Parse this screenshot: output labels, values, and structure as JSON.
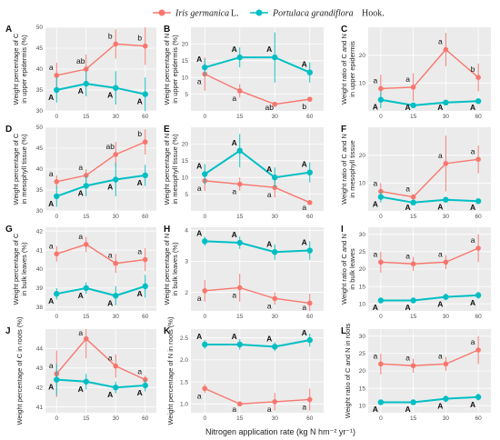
{
  "legend": {
    "series": [
      {
        "name": "Iris germanica",
        "suffix": "L.",
        "color": "#f8766d"
      },
      {
        "name": "Portulaca grandiflora",
        "suffix": "Hook.",
        "color": "#00bfc4"
      }
    ]
  },
  "xlabel": "Nitrogen application rate  (kg N  hm⁻² yr⁻¹)",
  "chart_data": [
    {
      "tag": "A",
      "type": "line",
      "ylabel": [
        "Weight percentage of C",
        "in upper epidermis (%)"
      ],
      "categories": [
        "0",
        "15",
        "30",
        "60"
      ],
      "ylim": [
        30,
        50
      ],
      "yticks": [
        30,
        35,
        40,
        45,
        50
      ],
      "yticklabels": [
        "30",
        "35",
        "40",
        "45",
        "50"
      ],
      "series": [
        {
          "name": "Iris germanica",
          "values": [
            38.5,
            40,
            46,
            45.5
          ],
          "err": [
            3,
            3.5,
            3.5,
            4.5
          ],
          "labels": [
            "a",
            "ab",
            "b",
            "b"
          ]
        },
        {
          "name": "Portulaca grandiflora",
          "values": [
            35,
            36.5,
            35.5,
            34
          ],
          "err": [
            3,
            3,
            4,
            4
          ],
          "labels": [
            "A",
            "A",
            "A",
            "A"
          ]
        }
      ]
    },
    {
      "tag": "B",
      "type": "line",
      "ylabel": [
        "Weight percentage of N",
        "in upper epidermis (%)"
      ],
      "categories": [
        "0",
        "15",
        "30",
        "60"
      ],
      "ylim": [
        0,
        25
      ],
      "yticks": [
        5,
        10,
        15,
        20
      ],
      "yticklabels": [
        "5",
        "10",
        "15",
        "20"
      ],
      "series": [
        {
          "name": "Iris germanica",
          "values": [
            11,
            6,
            2,
            3.5
          ],
          "err": [
            5,
            2,
            0,
            0
          ],
          "labels": [
            "a",
            "a",
            "ab",
            "b"
          ]
        },
        {
          "name": "Portulaca grandiflora",
          "values": [
            13,
            16,
            16,
            11.5
          ],
          "err": [
            2.5,
            3,
            7.5,
            3
          ],
          "labels": [
            "A",
            "A",
            "A",
            "A"
          ]
        }
      ]
    },
    {
      "tag": "C",
      "type": "line",
      "ylabel": [
        "Weight ratio of C and N",
        "in upper epidermis"
      ],
      "categories": [
        "0",
        "15",
        "30",
        "60"
      ],
      "ylim": [
        0,
        30
      ],
      "yticks": [
        10,
        20
      ],
      "yticklabels": [
        "10",
        "20"
      ],
      "series": [
        {
          "name": "Iris germanica",
          "values": [
            8,
            8.5,
            22,
            12
          ],
          "err": [
            5,
            5,
            6,
            5
          ],
          "labels": [
            "a",
            "a",
            "a",
            "b"
          ]
        },
        {
          "name": "Portulaca grandiflora",
          "values": [
            4,
            2,
            3,
            3.5
          ],
          "err": [
            3,
            0.5,
            1,
            1
          ],
          "labels": [
            "A",
            "A",
            "A",
            "A"
          ]
        }
      ]
    },
    {
      "tag": "D",
      "type": "line",
      "ylabel": [
        "Weight percentage of C",
        "in mesophyll tissue (%)"
      ],
      "categories": [
        "0",
        "15",
        "30",
        "60"
      ],
      "ylim": [
        30,
        50
      ],
      "yticks": [
        30,
        35,
        40,
        45,
        50
      ],
      "yticklabels": [
        "30",
        "35",
        "40",
        "45",
        "50"
      ],
      "series": [
        {
          "name": "Iris germanica",
          "values": [
            37,
            38.5,
            43.5,
            46.5
          ],
          "err": [
            1.5,
            1.5,
            3,
            3
          ],
          "labels": [
            "a",
            "a",
            "ab",
            "b"
          ]
        },
        {
          "name": "Portulaca grandiflora",
          "values": [
            33.5,
            36,
            37.5,
            38.5
          ],
          "err": [
            2.5,
            2.5,
            4,
            2.5
          ],
          "labels": [
            "A",
            "A",
            "A",
            "A"
          ]
        }
      ]
    },
    {
      "tag": "E",
      "type": "line",
      "ylabel": [
        "Weight percentage of N",
        "in mesophyll tissue (%)"
      ],
      "categories": [
        "0",
        "15",
        "30",
        "60"
      ],
      "ylim": [
        0,
        25
      ],
      "yticks": [
        5,
        10,
        15,
        20
      ],
      "yticklabels": [
        "5",
        "10",
        "15",
        "20"
      ],
      "series": [
        {
          "name": "Iris germanica",
          "values": [
            9,
            8,
            7,
            2.5
          ],
          "err": [
            3,
            2,
            3,
            0.5
          ],
          "labels": [
            "a",
            "a",
            "a",
            "a"
          ]
        },
        {
          "name": "Portulaca grandiflora",
          "values": [
            11,
            18,
            10,
            11.5
          ],
          "err": [
            3,
            5,
            3,
            3
          ],
          "labels": [
            "A",
            "A",
            "A",
            "A"
          ]
        }
      ]
    },
    {
      "tag": "F",
      "type": "line",
      "ylabel": [
        "Weight ratio of C and N",
        "in mesophyll tissue"
      ],
      "categories": [
        "0",
        "15",
        "30",
        "60"
      ],
      "ylim": [
        0,
        30
      ],
      "yticks": [
        10,
        20
      ],
      "yticklabels": [
        "10",
        "20"
      ],
      "series": [
        {
          "name": "Iris germanica",
          "values": [
            7,
            5,
            17,
            18.5
          ],
          "err": [
            3,
            1,
            10,
            5
          ],
          "labels": [
            "a",
            "a",
            "a",
            "a"
          ]
        },
        {
          "name": "Portulaca grandiflora",
          "values": [
            5,
            3,
            4,
            3.5
          ],
          "err": [
            2,
            1,
            1,
            1
          ],
          "labels": [
            "A",
            "A",
            "A",
            "A"
          ]
        }
      ]
    },
    {
      "tag": "G",
      "type": "line",
      "ylabel": [
        "Weight percentage of C",
        "in bulk leaves (%)"
      ],
      "categories": [
        "0",
        "15",
        "30",
        "60"
      ],
      "ylim": [
        37.8,
        42.2
      ],
      "yticks": [
        38,
        39,
        40,
        41,
        42
      ],
      "yticklabels": [
        "38",
        "39",
        "40",
        "41",
        "42"
      ],
      "series": [
        {
          "name": "Iris germanica",
          "values": [
            40.8,
            41.3,
            40.3,
            40.5
          ],
          "err": [
            0.4,
            0.4,
            0.5,
            0.6
          ],
          "labels": [
            "a",
            "a",
            "a",
            "a"
          ]
        },
        {
          "name": "Portulaca grandiflora",
          "values": [
            38.7,
            39,
            38.6,
            39.1
          ],
          "err": [
            0.3,
            0.3,
            0.5,
            0.6
          ],
          "labels": [
            "A",
            "A",
            "A",
            "A"
          ]
        }
      ]
    },
    {
      "tag": "H",
      "type": "line",
      "ylabel": [
        "Weight percentage of N",
        "in bulk leaves (%)"
      ],
      "categories": [
        "0",
        "15",
        "30",
        "60"
      ],
      "ylim": [
        1.4,
        4.1
      ],
      "yticks": [
        2,
        3,
        4
      ],
      "yticklabels": [
        "2",
        "3",
        "4"
      ],
      "series": [
        {
          "name": "Iris germanica",
          "values": [
            2.05,
            2.15,
            1.8,
            1.65
          ],
          "err": [
            0.35,
            0.45,
            0.2,
            0.3
          ],
          "labels": [
            "a",
            "a",
            "a",
            "a"
          ]
        },
        {
          "name": "Portulaca grandiflora",
          "values": [
            3.65,
            3.6,
            3.3,
            3.35
          ],
          "err": [
            0.15,
            0.2,
            0.25,
            0.3
          ],
          "labels": [
            "A",
            "A",
            "A",
            "A"
          ]
        }
      ]
    },
    {
      "tag": "I",
      "type": "line",
      "ylabel": [
        "Weight ratio of C and N",
        "in bulk leaves"
      ],
      "categories": [
        "0",
        "15",
        "30",
        "60"
      ],
      "ylim": [
        8,
        32
      ],
      "yticks": [
        10,
        15,
        20,
        25,
        30
      ],
      "yticklabels": [
        "10",
        "15",
        "20",
        "25",
        "30"
      ],
      "series": [
        {
          "name": "Iris germanica",
          "values": [
            22,
            21.5,
            22,
            26
          ],
          "err": [
            3,
            2,
            2,
            4
          ],
          "labels": [
            "a",
            "a",
            "a",
            "a"
          ]
        },
        {
          "name": "Portulaca grandiflora",
          "values": [
            11,
            11,
            12,
            12.5
          ],
          "err": [
            0.5,
            0.5,
            1,
            1
          ],
          "labels": [
            "A",
            "A",
            "A",
            "A"
          ]
        }
      ]
    },
    {
      "tag": "J",
      "type": "line",
      "ylabel": [
        "Weight percentage of C in roots (%)"
      ],
      "categories": [
        "0",
        "15",
        "30",
        "60"
      ],
      "ylim": [
        40.7,
        45
      ],
      "yticks": [
        41,
        42,
        43,
        44
      ],
      "yticklabels": [
        "41",
        "42",
        "43",
        "44"
      ],
      "series": [
        {
          "name": "Iris germanica",
          "values": [
            42.7,
            44.5,
            43.1,
            42.4
          ],
          "err": [
            1.2,
            1,
            0.6,
            0.2
          ],
          "labels": [
            "a",
            "a",
            "a",
            "a"
          ]
        },
        {
          "name": "Portulaca grandiflora",
          "values": [
            42.4,
            42.3,
            42,
            42.1
          ],
          "err": [
            0.8,
            0.4,
            0.3,
            0.3
          ],
          "labels": [
            "A",
            "A",
            "A",
            "A"
          ]
        }
      ]
    },
    {
      "tag": "K",
      "type": "line",
      "ylabel": [
        "Weight percentage of N in roots (%)"
      ],
      "categories": [
        "0",
        "15",
        "30",
        "60"
      ],
      "ylim": [
        0.8,
        2.7
      ],
      "yticks": [
        1,
        1.5,
        2,
        2.5
      ],
      "yticklabels": [
        "1.0",
        "1.5",
        "2.0",
        "2.5"
      ],
      "series": [
        {
          "name": "Iris germanica",
          "values": [
            1.35,
            1,
            1.05,
            1.1
          ],
          "err": [
            0.1,
            0.05,
            0.2,
            0.25
          ],
          "labels": [
            "a",
            "a",
            "a",
            "a"
          ]
        },
        {
          "name": "Portulaca grandiflora",
          "values": [
            2.35,
            2.35,
            2.3,
            2.45
          ],
          "err": [
            0.1,
            0.12,
            0.1,
            0.15
          ],
          "labels": [
            "A",
            "A",
            "A",
            "A"
          ]
        }
      ]
    },
    {
      "tag": "L",
      "type": "line",
      "ylabel": [
        "Weight ratio of C and N in roots"
      ],
      "categories": [
        "0",
        "15",
        "30",
        "60"
      ],
      "ylim": [
        8,
        32
      ],
      "yticks": [
        10,
        15,
        20,
        25,
        30
      ],
      "yticklabels": [
        "10",
        "15",
        "20",
        "25",
        "30"
      ],
      "series": [
        {
          "name": "Iris germanica",
          "values": [
            22,
            21.5,
            22,
            26
          ],
          "err": [
            3,
            2,
            2,
            4
          ],
          "labels": [
            "a",
            "a",
            "a",
            "a"
          ]
        },
        {
          "name": "Portulaca grandiflora",
          "values": [
            11,
            11,
            12,
            12.5
          ],
          "err": [
            0.5,
            0.5,
            1,
            1
          ],
          "labels": [
            "A",
            "A",
            "A",
            "A"
          ]
        }
      ]
    }
  ]
}
